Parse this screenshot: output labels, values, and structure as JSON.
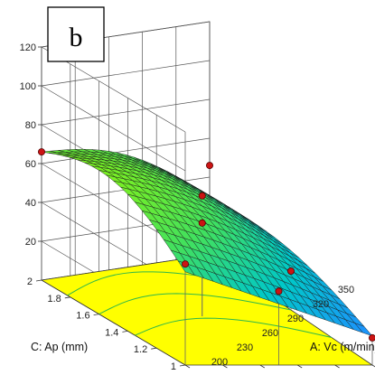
{
  "chart_data": {
    "type": "surface",
    "panel_label": "b",
    "x_axis": {
      "label": "A: Vc (m/min)",
      "ticks": [
        "200",
        "230",
        "260",
        "290",
        "320",
        "350"
      ],
      "range": [
        200,
        350
      ]
    },
    "y_axis": {
      "label": "C: Ap (mm)",
      "ticks": [
        "1",
        "1.2",
        "1.4",
        "1.6",
        "1.8",
        "2"
      ],
      "range": [
        1,
        2
      ]
    },
    "z_axis": {
      "label": "",
      "ticks": [
        "20",
        "40",
        "60",
        "80",
        "100",
        "120"
      ],
      "range": [
        0,
        120
      ]
    },
    "surface": {
      "x": [
        200,
        350
      ],
      "y": [
        1,
        2
      ],
      "z_corners": {
        "x200_y1": 48,
        "x350_y1": 15,
        "x200_y2": 66,
        "x350_y2": 30
      },
      "colormap": [
        "#1e90ff",
        "#00c8c8",
        "#40e060",
        "#7cf020"
      ]
    },
    "design_points": [
      {
        "x": 200,
        "y": 1,
        "z": 52
      },
      {
        "x": 350,
        "y": 1,
        "z": 14
      },
      {
        "x": 200,
        "y": 2,
        "z": 66
      },
      {
        "x": 350,
        "y": 2,
        "z": 46
      },
      {
        "x": 275,
        "y": 1.5,
        "z": 62
      },
      {
        "x": 275,
        "y": 1.5,
        "z": 48
      },
      {
        "x": 350,
        "y": 1.5,
        "z": 20
      },
      {
        "x": 275,
        "y": 1,
        "z": 38
      }
    ],
    "floor_color": "#ffff00",
    "grid": true
  }
}
